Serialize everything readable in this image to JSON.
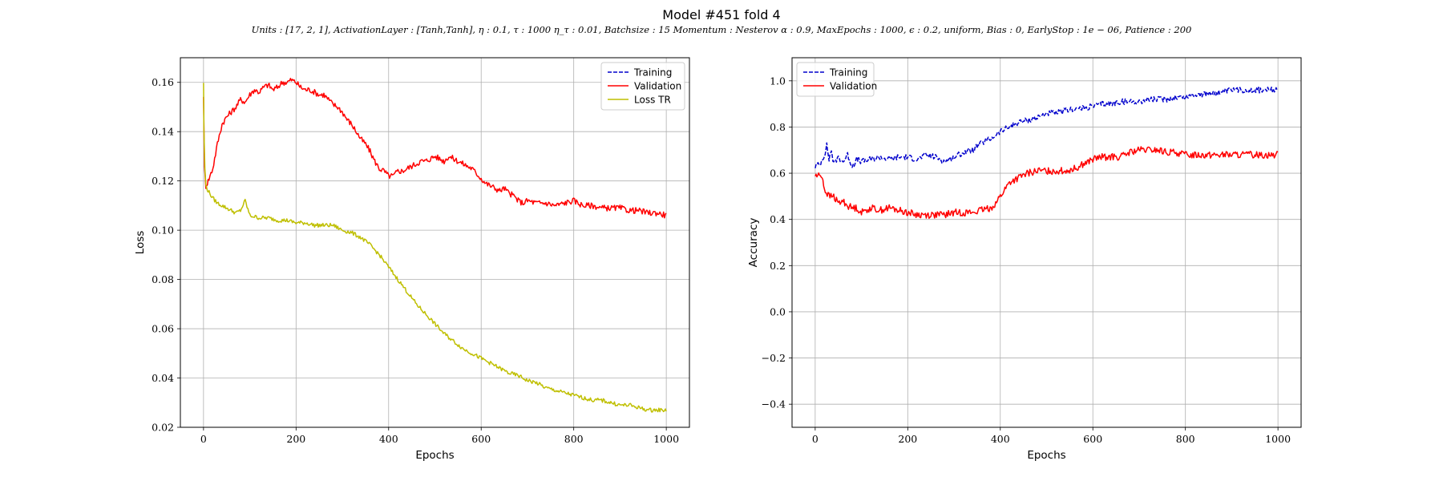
{
  "title": "Model #451 fold 4",
  "subtitle": "Units : [17, 2, 1], ActivationLayer : [Tanh,Tanh], η : 0.1, τ : 1000 η_τ : 0.01, Batchsize : 15 Momentum : Nesterov α : 0.9, MaxEpochs : 1000, ϵ : 0.2, uniform, Bias : 0, EarlyStop : 1e − 06, Patience : 200",
  "chart_data": [
    {
      "type": "line",
      "xlabel": "Epochs",
      "ylabel": "Loss",
      "xlim": [
        -50,
        1050
      ],
      "ylim": [
        0.02,
        0.17
      ],
      "xticks": [
        0,
        200,
        400,
        600,
        800,
        1000
      ],
      "xtick_labels": [
        "0",
        "200",
        "400",
        "600",
        "800",
        "1000"
      ],
      "yticks": [
        0.02,
        0.04,
        0.06,
        0.08,
        0.1,
        0.12,
        0.14,
        0.16
      ],
      "ytick_labels": [
        "0.02",
        "0.04",
        "0.06",
        "0.08",
        "0.10",
        "0.12",
        "0.14",
        "0.16"
      ],
      "grid": true,
      "legend_loc": "upper right",
      "series": [
        {
          "name": "Training",
          "color": "#0000cc",
          "style": "dashed",
          "x": [],
          "y": []
        },
        {
          "name": "Validation",
          "color": "#ff0000",
          "style": "solid",
          "x": [
            0,
            2,
            5,
            10,
            20,
            30,
            40,
            50,
            60,
            70,
            80,
            90,
            100,
            110,
            120,
            130,
            140,
            150,
            160,
            170,
            180,
            190,
            200,
            210,
            220,
            230,
            240,
            250,
            260,
            270,
            280,
            290,
            300,
            310,
            320,
            330,
            340,
            350,
            360,
            370,
            380,
            390,
            400,
            410,
            420,
            430,
            440,
            450,
            460,
            470,
            480,
            490,
            500,
            510,
            520,
            530,
            540,
            550,
            560,
            570,
            580,
            590,
            600,
            610,
            620,
            630,
            640,
            650,
            660,
            670,
            680,
            690,
            700,
            720,
            740,
            760,
            780,
            800,
            820,
            840,
            860,
            880,
            900,
            920,
            940,
            960,
            980,
            1000
          ],
          "y": [
            0.155,
            0.125,
            0.118,
            0.12,
            0.125,
            0.135,
            0.143,
            0.146,
            0.148,
            0.15,
            0.153,
            0.152,
            0.155,
            0.157,
            0.156,
            0.158,
            0.159,
            0.157,
            0.158,
            0.16,
            0.16,
            0.161,
            0.16,
            0.158,
            0.157,
            0.157,
            0.156,
            0.155,
            0.155,
            0.153,
            0.151,
            0.15,
            0.148,
            0.145,
            0.143,
            0.14,
            0.137,
            0.135,
            0.132,
            0.128,
            0.125,
            0.124,
            0.122,
            0.122,
            0.124,
            0.124,
            0.125,
            0.126,
            0.127,
            0.128,
            0.128,
            0.129,
            0.13,
            0.129,
            0.128,
            0.13,
            0.129,
            0.128,
            0.127,
            0.126,
            0.125,
            0.123,
            0.121,
            0.119,
            0.118,
            0.117,
            0.116,
            0.117,
            0.115,
            0.114,
            0.112,
            0.111,
            0.112,
            0.111,
            0.111,
            0.11,
            0.111,
            0.112,
            0.11,
            0.11,
            0.109,
            0.109,
            0.109,
            0.108,
            0.108,
            0.107,
            0.107,
            0.106
          ]
        },
        {
          "name": "Loss TR",
          "color": "#bfbf00",
          "style": "solid",
          "x": [
            0,
            1,
            3,
            5,
            10,
            20,
            30,
            40,
            50,
            60,
            70,
            80,
            90,
            100,
            120,
            140,
            160,
            180,
            200,
            220,
            240,
            260,
            280,
            300,
            320,
            340,
            360,
            380,
            400,
            420,
            440,
            460,
            480,
            500,
            520,
            540,
            560,
            580,
            600,
            620,
            640,
            660,
            680,
            700,
            720,
            740,
            760,
            780,
            800,
            820,
            840,
            860,
            880,
            900,
            920,
            940,
            960,
            980,
            1000
          ],
          "y": [
            0.16,
            0.14,
            0.125,
            0.118,
            0.116,
            0.113,
            0.111,
            0.11,
            0.109,
            0.108,
            0.107,
            0.108,
            0.112,
            0.106,
            0.105,
            0.105,
            0.104,
            0.104,
            0.103,
            0.103,
            0.102,
            0.102,
            0.102,
            0.1,
            0.099,
            0.097,
            0.094,
            0.09,
            0.085,
            0.08,
            0.075,
            0.07,
            0.066,
            0.062,
            0.058,
            0.055,
            0.052,
            0.05,
            0.048,
            0.046,
            0.044,
            0.042,
            0.041,
            0.039,
            0.038,
            0.036,
            0.035,
            0.034,
            0.033,
            0.032,
            0.031,
            0.031,
            0.03,
            0.029,
            0.029,
            0.028,
            0.027,
            0.027,
            0.027
          ]
        }
      ]
    },
    {
      "type": "line",
      "xlabel": "Epochs",
      "ylabel": "Accuracy",
      "xlim": [
        -50,
        1050
      ],
      "ylim": [
        -0.5,
        1.1
      ],
      "xticks": [
        0,
        200,
        400,
        600,
        800,
        1000
      ],
      "xtick_labels": [
        "0",
        "200",
        "400",
        "600",
        "800",
        "1000"
      ],
      "yticks": [
        -0.4,
        -0.2,
        0.0,
        0.2,
        0.4,
        0.6,
        0.8,
        1.0
      ],
      "ytick_labels": [
        "−0.4",
        "−0.2",
        "0.0",
        "0.2",
        "0.4",
        "0.6",
        "0.8",
        "1.0"
      ],
      "grid": true,
      "legend_loc": "upper left",
      "series": [
        {
          "name": "Training",
          "color": "#0000cc",
          "style": "dashed",
          "x": [
            0,
            10,
            20,
            25,
            30,
            35,
            40,
            50,
            60,
            70,
            80,
            90,
            100,
            120,
            140,
            160,
            180,
            200,
            220,
            240,
            260,
            280,
            300,
            320,
            340,
            360,
            380,
            400,
            420,
            440,
            460,
            480,
            500,
            520,
            540,
            560,
            580,
            600,
            620,
            640,
            660,
            680,
            700,
            720,
            740,
            760,
            780,
            800,
            820,
            840,
            860,
            880,
            900,
            950,
            1000
          ],
          "y": [
            0.63,
            0.64,
            0.68,
            0.72,
            0.66,
            0.7,
            0.64,
            0.67,
            0.65,
            0.68,
            0.63,
            0.66,
            0.65,
            0.66,
            0.67,
            0.66,
            0.67,
            0.67,
            0.66,
            0.68,
            0.67,
            0.65,
            0.67,
            0.69,
            0.7,
            0.73,
            0.75,
            0.78,
            0.8,
            0.82,
            0.83,
            0.84,
            0.86,
            0.86,
            0.87,
            0.88,
            0.88,
            0.89,
            0.9,
            0.9,
            0.91,
            0.91,
            0.91,
            0.92,
            0.92,
            0.92,
            0.93,
            0.93,
            0.94,
            0.94,
            0.95,
            0.95,
            0.96,
            0.96,
            0.96
          ]
        },
        {
          "name": "Validation",
          "color": "#ff0000",
          "style": "solid",
          "x": [
            0,
            15,
            20,
            30,
            40,
            50,
            60,
            70,
            80,
            90,
            100,
            120,
            140,
            160,
            180,
            200,
            220,
            240,
            260,
            280,
            300,
            320,
            340,
            360,
            380,
            390,
            400,
            410,
            420,
            440,
            460,
            480,
            500,
            520,
            540,
            560,
            580,
            600,
            620,
            640,
            660,
            680,
            700,
            720,
            740,
            760,
            780,
            800,
            850,
            900,
            950,
            1000
          ],
          "y": [
            0.59,
            0.59,
            0.53,
            0.5,
            0.5,
            0.47,
            0.48,
            0.46,
            0.45,
            0.45,
            0.43,
            0.45,
            0.44,
            0.45,
            0.44,
            0.43,
            0.42,
            0.42,
            0.42,
            0.42,
            0.43,
            0.43,
            0.43,
            0.44,
            0.45,
            0.47,
            0.5,
            0.53,
            0.56,
            0.58,
            0.6,
            0.61,
            0.61,
            0.61,
            0.61,
            0.62,
            0.64,
            0.66,
            0.67,
            0.67,
            0.67,
            0.69,
            0.7,
            0.7,
            0.7,
            0.69,
            0.69,
            0.68,
            0.68,
            0.68,
            0.68,
            0.68
          ]
        }
      ]
    }
  ]
}
